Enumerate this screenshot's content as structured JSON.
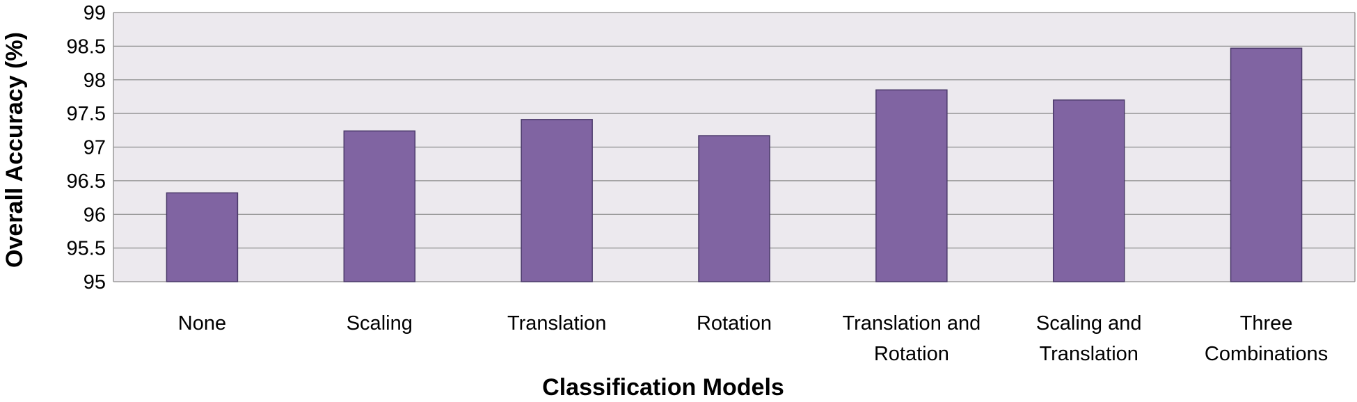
{
  "chart_data": {
    "type": "bar",
    "title": "",
    "xlabel": "Classification Models",
    "ylabel": "Overall Accuracy (%)",
    "ylim": [
      95,
      99
    ],
    "yticks": [
      "95",
      "95.5",
      "96",
      "96.5",
      "97",
      "97.5",
      "98",
      "98.5",
      "99"
    ],
    "grid": true,
    "legend": "none",
    "categories": [
      [
        "None"
      ],
      [
        "Scaling"
      ],
      [
        "Translation"
      ],
      [
        "Rotation"
      ],
      [
        "Translation and",
        "Rotation"
      ],
      [
        "Scaling and",
        "Translation"
      ],
      [
        "Three",
        "Combinations"
      ]
    ],
    "values": [
      96.32,
      97.24,
      97.41,
      97.17,
      97.85,
      97.7,
      98.47
    ]
  },
  "colors": {
    "bar_fill": "#8064a2",
    "bar_stroke": "#4b3a6a",
    "plot_background": "#ece9ee",
    "gridline": "#8c8c8c"
  }
}
